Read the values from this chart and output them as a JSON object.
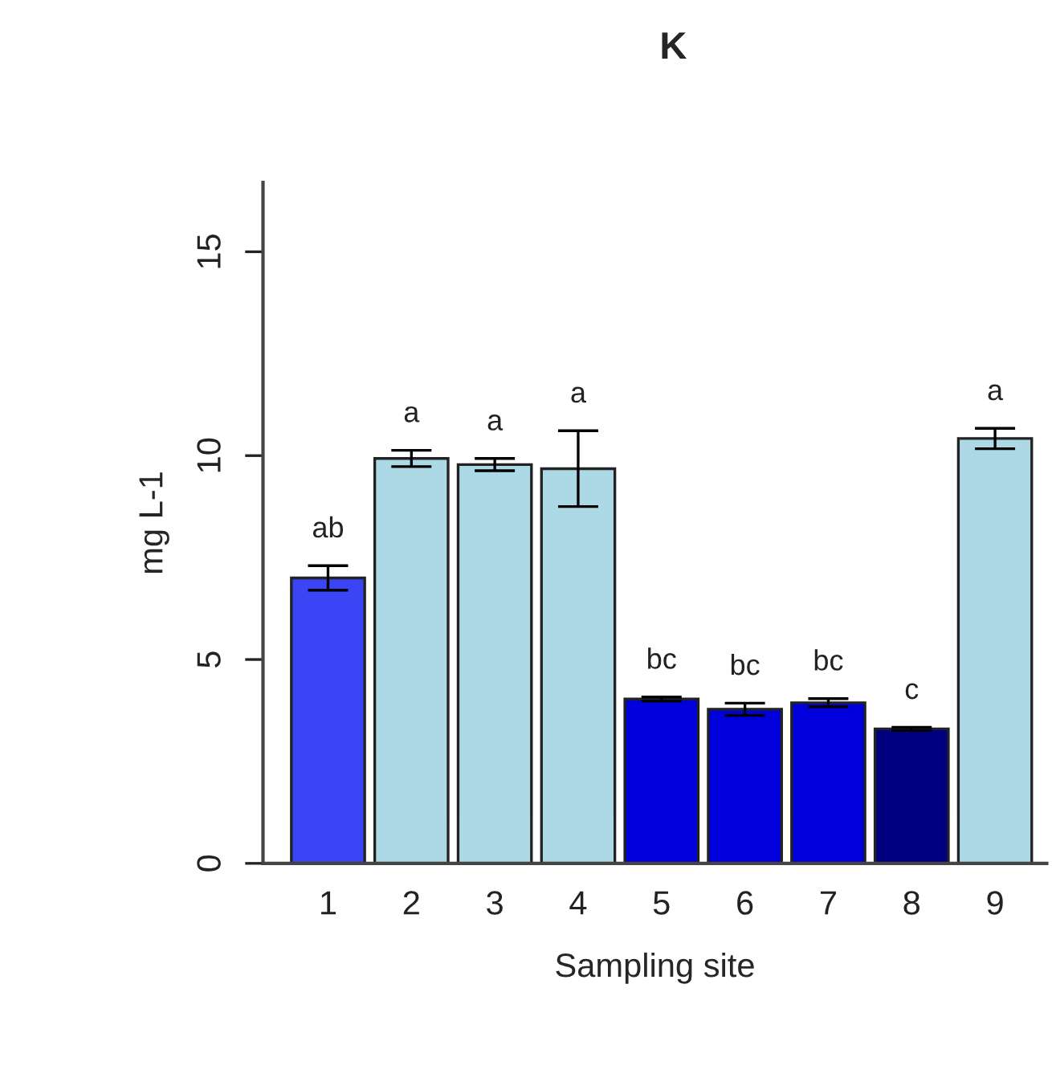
{
  "chart_data": {
    "type": "bar",
    "title": "K",
    "xlabel": "Sampling site",
    "ylabel": "mg L-1",
    "categories": [
      "1",
      "2",
      "3",
      "4",
      "5",
      "6",
      "7",
      "8",
      "9"
    ],
    "values": [
      7.0,
      9.93,
      9.78,
      9.68,
      4.03,
      3.78,
      3.94,
      3.3,
      10.42
    ],
    "errors": [
      0.3,
      0.2,
      0.15,
      0.93,
      0.05,
      0.15,
      0.1,
      0.04,
      0.25
    ],
    "colors": [
      "#3a45f5",
      "#add8e6",
      "#add8e6",
      "#add8e6",
      "#0000dd",
      "#0000dd",
      "#0000dd",
      "#000080",
      "#add8e6"
    ],
    "ylim": [
      0,
      16.7
    ],
    "yticks": [
      0,
      5,
      10,
      15
    ],
    "grid": false,
    "legend": false,
    "annotations": [
      {
        "text": "ab",
        "x": "1",
        "y": 7.3
      },
      {
        "text": "a",
        "x": "2",
        "y": 10.13
      },
      {
        "text": "a",
        "x": "3",
        "y": 9.93
      },
      {
        "text": "a",
        "x": "4",
        "y": 10.61
      },
      {
        "text": "bc",
        "x": "5",
        "y": 4.08
      },
      {
        "text": "bc",
        "x": "6",
        "y": 3.93
      },
      {
        "text": "bc",
        "x": "7",
        "y": 4.04
      },
      {
        "text": "c",
        "x": "8",
        "y": 3.34
      },
      {
        "text": "a",
        "x": "9",
        "y": 10.67
      }
    ]
  }
}
